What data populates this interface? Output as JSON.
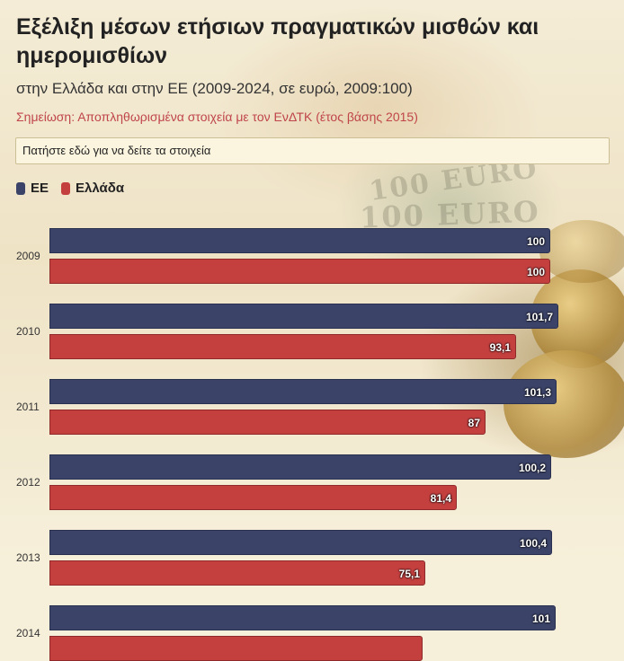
{
  "header": {
    "title": "Εξέλιξη μέσων ετήσιων πραγματικών μισθών και ημερομισθίων",
    "subtitle": "στην Ελλάδα και στην ΕΕ (2009-2024, σε ευρώ, 2009:100)",
    "note": "Σημείωση: Αποπληθωρισμένα στοιχεία με τον ΕνΔΤΚ (έτος βάσης 2015)",
    "data_link": "Πατήστε εδώ για να δείτε τα στοιχεία"
  },
  "colors": {
    "ee": "#3b4369",
    "el": "#c4403f"
  },
  "chart_data": {
    "type": "bar",
    "orientation": "horizontal",
    "title": "Εξέλιξη μέσων ετήσιων πραγματικών μισθών και ημερομισθίων",
    "subtitle": "στην Ελλάδα και στην ΕΕ (2009-2024, σε ευρώ, 2009:100)",
    "legend_position": "top-left",
    "categories": [
      "2009",
      "2010",
      "2011",
      "2012",
      "2013",
      "2014"
    ],
    "series": [
      {
        "name": "ΕΕ",
        "values": [
          100,
          101.7,
          101.3,
          100.2,
          100.4,
          101
        ],
        "labels": [
          "100",
          "101,7",
          "101,3",
          "100,2",
          "100,4",
          "101"
        ]
      },
      {
        "name": "Ελλάδα",
        "values": [
          100,
          93.1,
          87,
          81.4,
          75.1,
          74.5
        ],
        "labels": [
          "100",
          "93,1",
          "87",
          "81,4",
          "75,1",
          ""
        ]
      }
    ],
    "xlim": [
      0,
      100
    ]
  }
}
